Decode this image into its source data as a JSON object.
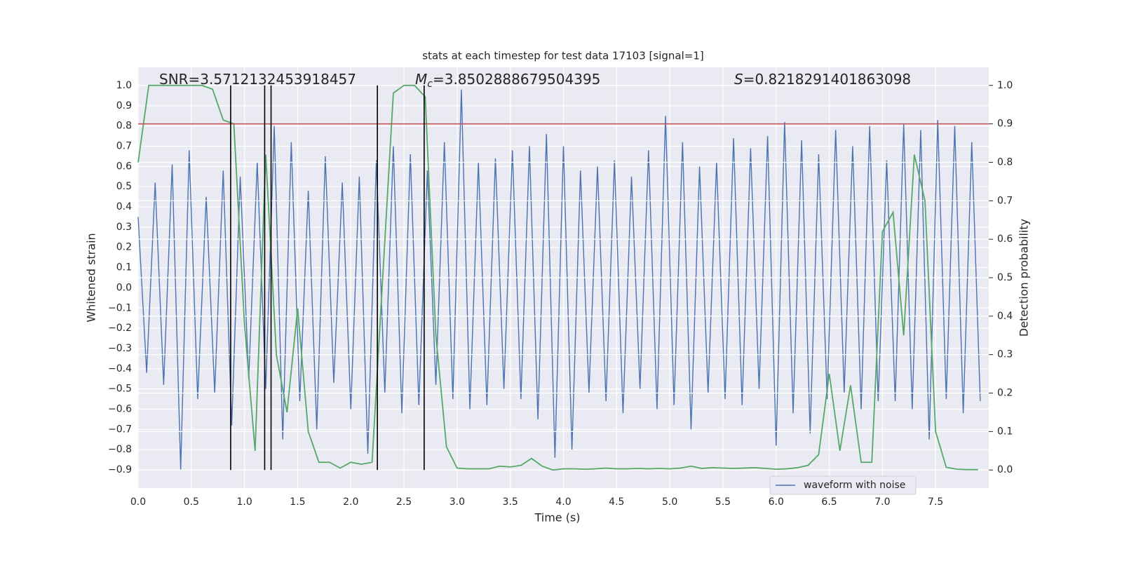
{
  "chart_data": {
    "type": "line",
    "title": "stats at each timestep for test data 17103 [signal=1]",
    "xlabel": "Time (s)",
    "ylabel": "Whitened strain",
    "y2label": "Detection probability",
    "xlim": [
      0,
      8
    ],
    "ylim": [
      -0.99,
      1.09
    ],
    "y2lim": [
      -0.047,
      1.047
    ],
    "xticks": [
      {
        "value": 0,
        "label": "0.0"
      },
      0.5,
      {
        "value": 1,
        "label": "1.0"
      },
      1.5,
      {
        "value": 2,
        "label": "2.0"
      },
      2.5,
      {
        "value": 3,
        "label": "3.0"
      },
      3.5,
      {
        "value": 4,
        "label": "4.0"
      },
      4.5,
      {
        "value": 5,
        "label": "5.0"
      },
      5.5,
      {
        "value": 6,
        "label": "6.0"
      },
      6.5,
      {
        "value": 7,
        "label": "7.0"
      },
      7.5
    ],
    "yticks": [
      {
        "value": -0.9,
        "label": "−0.9"
      },
      {
        "value": -0.8,
        "label": "−0.8"
      },
      {
        "value": -0.7,
        "label": "−0.7"
      },
      {
        "value": -0.6,
        "label": "−0.6"
      },
      {
        "value": -0.5,
        "label": "−0.5"
      },
      {
        "value": -0.4,
        "label": "−0.4"
      },
      {
        "value": -0.3,
        "label": "−0.3"
      },
      {
        "value": -0.2,
        "label": "−0.2"
      },
      {
        "value": -0.1,
        "label": "−0.1"
      },
      {
        "value": 0,
        "label": "0.0"
      },
      0.1,
      0.2,
      0.3,
      0.4,
      0.5,
      0.6,
      0.7,
      0.8,
      0.9,
      {
        "value": 1,
        "label": "1.0"
      }
    ],
    "y2ticks": [
      {
        "value": 0,
        "label": "0.0"
      },
      0.1,
      0.2,
      0.3,
      0.4,
      0.5,
      0.6,
      0.7,
      0.8,
      0.9,
      {
        "value": 1,
        "label": "1.0"
      }
    ],
    "grid": true,
    "legend": "lower right",
    "series": [
      {
        "name": "waveform with noise",
        "color": "#4c72b0",
        "x": [
          0,
          0.08,
          0.16,
          0.24,
          0.32,
          0.4,
          0.48,
          0.56,
          0.64,
          0.72,
          0.8,
          0.88,
          0.96,
          1.04,
          1.12,
          1.2,
          1.28,
          1.36,
          1.44,
          1.52,
          1.6,
          1.68,
          1.76,
          1.84,
          1.92,
          2,
          2.08,
          2.16,
          2.24,
          2.32,
          2.4,
          2.48,
          2.56,
          2.64,
          2.72,
          2.8,
          2.88,
          2.96,
          3.04,
          3.12,
          3.2,
          3.28,
          3.36,
          3.44,
          3.52,
          3.6,
          3.68,
          3.76,
          3.84,
          3.92,
          4,
          4.08,
          4.16,
          4.24,
          4.32,
          4.4,
          4.48,
          4.56,
          4.64,
          4.72,
          4.8,
          4.88,
          4.96,
          5.04,
          5.12,
          5.2,
          5.28,
          5.36,
          5.44,
          5.52,
          5.6,
          5.68,
          5.76,
          5.84,
          5.92,
          6,
          6.08,
          6.16,
          6.24,
          6.32,
          6.4,
          6.48,
          6.56,
          6.64,
          6.72,
          6.8,
          6.88,
          6.96,
          7.04,
          7.12,
          7.2,
          7.28,
          7.36,
          7.44,
          7.52,
          7.6,
          7.68,
          7.76,
          7.84,
          7.92
        ],
        "values": [
          0.35,
          -0.42,
          0.52,
          -0.48,
          0.61,
          -0.9,
          0.68,
          -0.55,
          0.45,
          -0.52,
          0.58,
          -0.68,
          0.55,
          -0.45,
          0.62,
          -0.5,
          0.8,
          -0.75,
          0.72,
          -0.56,
          0.48,
          -0.7,
          0.65,
          -0.47,
          0.52,
          -0.6,
          0.55,
          -0.82,
          0.63,
          -0.52,
          0.7,
          -0.62,
          0.66,
          -0.58,
          0.58,
          -0.48,
          0.72,
          -0.55,
          0.98,
          -0.6,
          0.62,
          -0.58,
          0.64,
          -0.5,
          0.68,
          -0.55,
          0.7,
          -0.65,
          0.76,
          -0.84,
          0.7,
          -0.8,
          0.58,
          -0.52,
          0.6,
          -0.56,
          0.63,
          -0.62,
          0.55,
          -0.5,
          0.68,
          -0.6,
          0.85,
          -0.58,
          0.72,
          -0.7,
          0.6,
          -0.52,
          0.62,
          -0.55,
          0.74,
          -0.58,
          0.69,
          -0.5,
          0.75,
          -0.78,
          0.82,
          -0.62,
          0.73,
          -0.72,
          0.66,
          -0.55,
          0.78,
          -0.52,
          0.7,
          -0.6,
          0.8,
          -0.56,
          0.63,
          -0.56,
          0.81,
          -0.6,
          0.78,
          -0.75,
          0.83,
          -0.55,
          0.8,
          -0.62,
          0.72,
          -0.56
        ]
      },
      {
        "color": "#55a868",
        "axis": "y2",
        "x": [
          0,
          0.1,
          0.2,
          0.3,
          0.4,
          0.5,
          0.6,
          0.7,
          0.8,
          0.9,
          1,
          1.1,
          1.2,
          1.3,
          1.4,
          1.5,
          1.6,
          1.7,
          1.8,
          1.9,
          2,
          2.1,
          2.2,
          2.3,
          2.4,
          2.5,
          2.6,
          2.7,
          2.8,
          2.9,
          3,
          3.1,
          3.2,
          3.3,
          3.4,
          3.5,
          3.6,
          3.7,
          3.8,
          3.9,
          4,
          4.1,
          4.2,
          4.3,
          4.4,
          4.5,
          4.6,
          4.7,
          4.8,
          4.9,
          5,
          5.1,
          5.2,
          5.3,
          5.4,
          5.5,
          5.6,
          5.7,
          5.8,
          5.9,
          6,
          6.1,
          6.2,
          6.3,
          6.4,
          6.5,
          6.6,
          6.7,
          6.8,
          6.9,
          7,
          7.1,
          7.2,
          7.3,
          7.4,
          7.5,
          7.6,
          7.7,
          7.8,
          7.9
        ],
        "values": [
          0.8,
          1,
          1,
          1,
          1,
          1,
          1,
          0.99,
          0.91,
          0.9,
          0.38,
          0.05,
          0.82,
          0.3,
          0.15,
          0.42,
          0.1,
          0.02,
          0.02,
          0.005,
          0.02,
          0.015,
          0.02,
          0.5,
          0.98,
          1,
          1,
          0.97,
          0.35,
          0.06,
          0.005,
          0.003,
          0.003,
          0.003,
          0.01,
          0.008,
          0.012,
          0.03,
          0.01,
          0,
          0.003,
          0.003,
          0.002,
          0.003,
          0.005,
          0.003,
          0.003,
          0.004,
          0.003,
          0.004,
          0.003,
          0.005,
          0.01,
          0.004,
          0.006,
          0.005,
          0.004,
          0.005,
          0.006,
          0.004,
          0.002,
          0.003,
          0.006,
          0.012,
          0.04,
          0.25,
          0.05,
          0.22,
          0.02,
          0.02,
          0.62,
          0.67,
          0.35,
          0.82,
          0.7,
          0.1,
          0.007,
          0.002,
          0.001,
          0.001
        ]
      }
    ],
    "threshold": {
      "value": 0.9,
      "axis": "y2",
      "color": "#c44e52"
    },
    "vlines": {
      "x": [
        0.87,
        1.19,
        1.25,
        2.25,
        2.69
      ],
      "range": [
        0,
        1
      ],
      "axis": "y2",
      "color": "#000000"
    },
    "annotations": [
      {
        "text": "SNR=3.5712132453918457"
      },
      {
        "symbol": "M",
        "subscript": "c",
        "text": "=3.8502888679504395"
      },
      {
        "symbol": "S",
        "text": "=0.8218291401863098"
      }
    ]
  }
}
